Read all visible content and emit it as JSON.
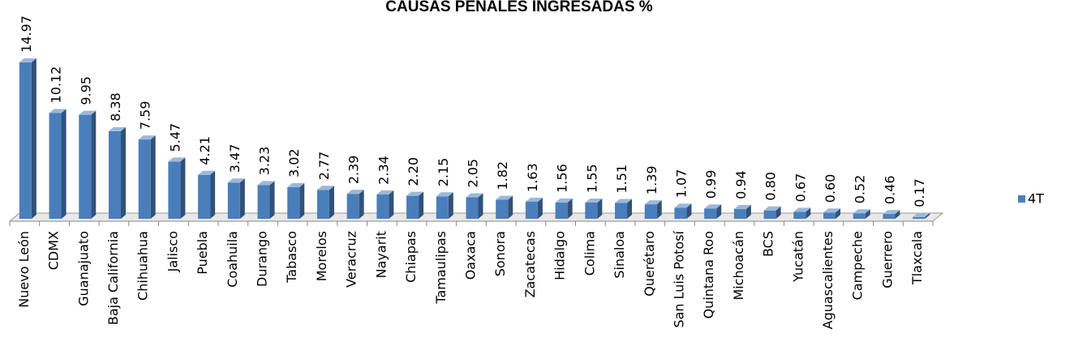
{
  "chart_data": {
    "type": "bar",
    "title": "CAUSAS PENALES INGRESADAS %",
    "categories": [
      "Nuevo León",
      "CDMX",
      "Guanajuato",
      "Baja California",
      "Chihuahua",
      "Jalisco",
      "Puebla",
      "Coahuila",
      "Durango",
      "Tabasco",
      "Morelos",
      "Veracruz",
      "Nayarit",
      "Chiapas",
      "Tamaulipas",
      "Oaxaca",
      "Sonora",
      "Zacatecas",
      "Hidalgo",
      "Colima",
      "Sinaloa",
      "Querétaro",
      "San Luis Potosí",
      "Quintana Roo",
      "Michoacán",
      "BCS",
      "Yucatán",
      "Aguascalientes",
      "Campeche",
      "Guerrero",
      "Tlaxcala"
    ],
    "series": [
      {
        "name": "4T",
        "color": "#4a7ebb",
        "values": [
          14.97,
          10.12,
          9.95,
          8.38,
          7.59,
          5.47,
          4.21,
          3.47,
          3.23,
          3.02,
          2.77,
          2.39,
          2.34,
          2.2,
          2.15,
          2.05,
          1.82,
          1.63,
          1.56,
          1.55,
          1.51,
          1.39,
          1.07,
          0.99,
          0.94,
          0.8,
          0.67,
          0.6,
          0.52,
          0.46,
          0.17
        ],
        "value_labels": [
          "14.97",
          "10.12",
          "9.95",
          "8.38",
          "7.59",
          "5.47",
          "4.21",
          "3.47",
          "3.23",
          "3.02",
          "2.77",
          "2.39",
          "2.34",
          "2.20",
          "2.15",
          "2.05",
          "1.82",
          "1.63",
          "1.56",
          "1.55",
          "1.51",
          "1.39",
          "1.07",
          "0.99",
          "0.94",
          "0.80",
          "0.67",
          "0.60",
          "0.52",
          "0.46",
          "0.17"
        ]
      }
    ]
  }
}
